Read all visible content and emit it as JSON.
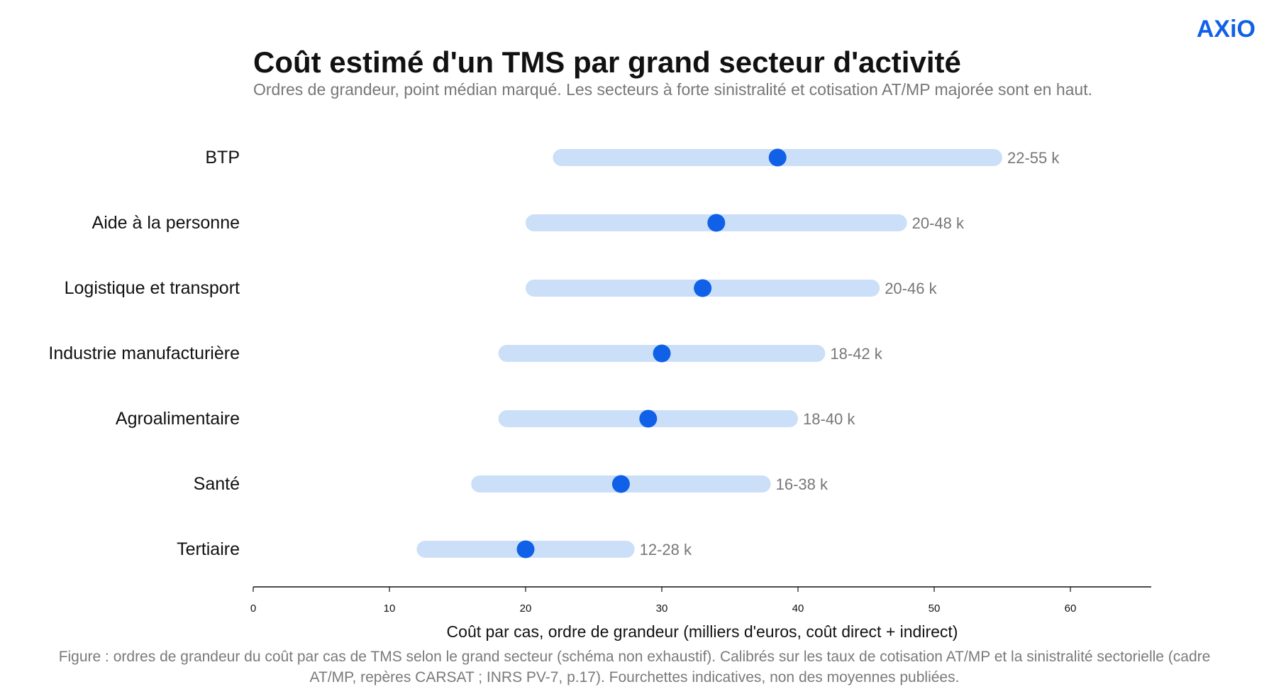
{
  "brand": "AXiO",
  "title": "Coût estimé d'un TMS par grand secteur d'activité",
  "subtitle": "Ordres de grandeur, point médian marqué. Les secteurs à forte sinistralité et cotisation AT/MP majorée sont en haut.",
  "caption": [
    "Figure : ordres de grandeur du coût par cas de TMS selon le grand secteur (schéma non exhaustif). Calibrés sur les taux de cotisation AT/MP et la sinistralité sectorielle (cadre",
    "AT/MP, repères CARSAT ; INRS PV-7, p.17). Fourchettes indicatives, non des moyennes publiées."
  ],
  "colors": {
    "range": "#CCDFF8",
    "median": "#1061E8",
    "label": "#777777",
    "axis": "#111111"
  },
  "chart_data": {
    "type": "range-dot",
    "xlabel": "Coût par cas, ordre de grandeur (milliers d'euros, coût direct + indirect)",
    "xlim": [
      0,
      66
    ],
    "xticks": [
      0,
      10,
      20,
      30,
      40,
      50,
      60
    ],
    "grid": false,
    "rows": [
      {
        "category": "BTP",
        "low": 22,
        "high": 55,
        "median": 38.5,
        "label": "22-55 k"
      },
      {
        "category": "Aide à la personne",
        "low": 20,
        "high": 48,
        "median": 34,
        "label": "20-48 k"
      },
      {
        "category": "Logistique et transport",
        "low": 20,
        "high": 46,
        "median": 33,
        "label": "20-46 k"
      },
      {
        "category": "Industrie manufacturière",
        "low": 18,
        "high": 42,
        "median": 30,
        "label": "18-42 k"
      },
      {
        "category": "Agroalimentaire",
        "low": 18,
        "high": 40,
        "median": 29,
        "label": "18-40 k"
      },
      {
        "category": "Santé",
        "low": 16,
        "high": 38,
        "median": 27,
        "label": "16-38 k"
      },
      {
        "category": "Tertiaire",
        "low": 12,
        "high": 28,
        "median": 20,
        "label": "12-28 k"
      }
    ]
  }
}
